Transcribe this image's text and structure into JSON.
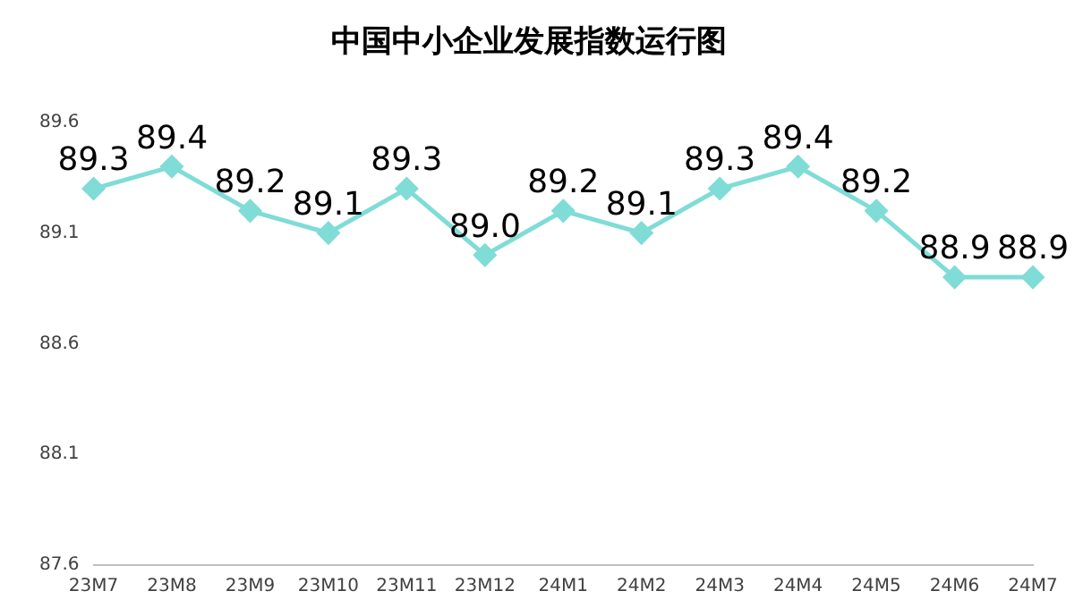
{
  "chart_data": {
    "type": "line",
    "title": "中国中小企业发展指数运行图",
    "categories": [
      "23M7",
      "23M8",
      "23M9",
      "23M10",
      "23M11",
      "23M12",
      "24M1",
      "24M2",
      "24M3",
      "24M4",
      "24M5",
      "24M6",
      "24M7"
    ],
    "series": [
      {
        "color": "#7fdcd6",
        "values": [
          89.3,
          89.4,
          89.2,
          89.1,
          89.3,
          89.0,
          89.2,
          89.1,
          89.3,
          89.4,
          89.2,
          88.9,
          88.9
        ],
        "value_labels": [
          "89.3",
          "89.4",
          "89.2",
          "89.1",
          "89.3",
          "89.0",
          "89.2",
          "89.1",
          "89.3",
          "89.4",
          "89.2",
          "88.9",
          "88.9"
        ]
      }
    ],
    "ylim": [
      87.6,
      89.6
    ],
    "yticks": [
      87.6,
      88.1,
      88.6,
      89.1,
      89.6
    ],
    "grid": false,
    "legend": false,
    "marker": "diamond",
    "line_style": "solid"
  }
}
